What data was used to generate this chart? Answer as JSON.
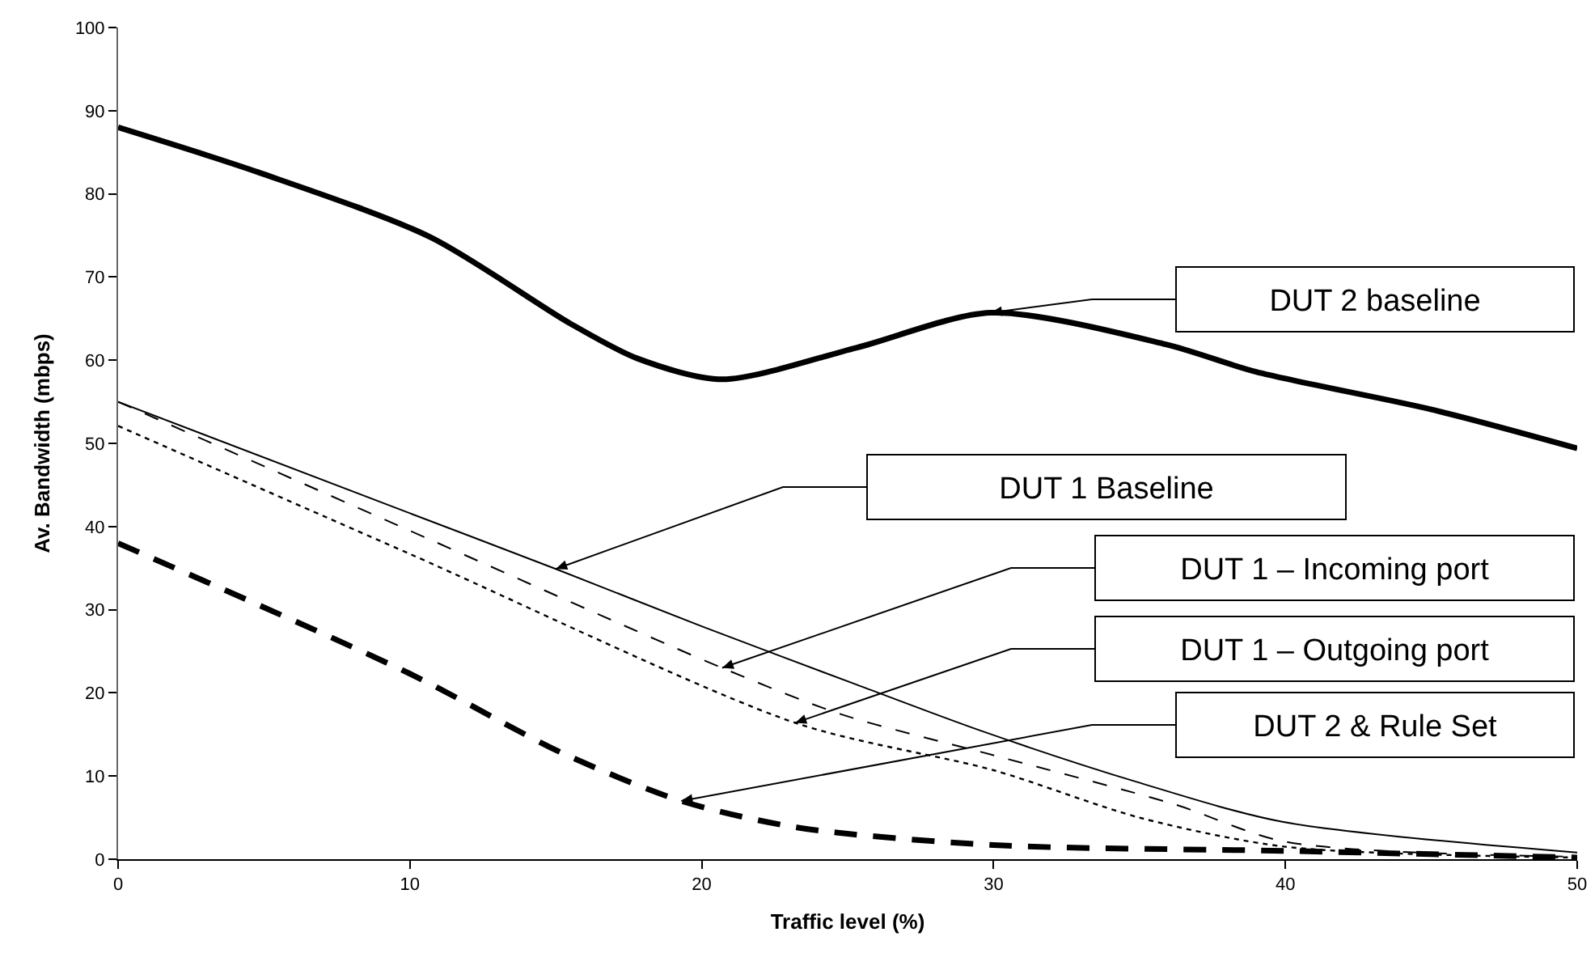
{
  "chart_data": {
    "type": "line",
    "xlabel": "Traffic level (%)",
    "ylabel": "Av. Bandwidth (mbps)",
    "xlim": [
      0,
      50
    ],
    "xticks": [
      0,
      10,
      20,
      30,
      40,
      50
    ],
    "ylim": [
      0,
      100
    ],
    "yticks": [
      0,
      10,
      20,
      30,
      40,
      50,
      60,
      70,
      80,
      90,
      100
    ],
    "grid": false,
    "marker": "none",
    "series": [
      {
        "color": "#000000",
        "line_style": "solid",
        "x": [
          0,
          4.8,
          10.7,
          15.5,
          17.8,
          20.7,
          25.3,
          29.9,
          35.9,
          39,
          45.1,
          50
        ],
        "values": [
          88,
          82.6,
          74.8,
          64.4,
          60.2,
          57.7,
          61.5,
          65.7,
          61.9,
          58.6,
          54,
          49.4
        ]
      },
      {
        "color": "#000000",
        "line_style": "solid",
        "x": [
          0,
          10,
          15,
          20,
          25.3,
          29.6,
          34.9,
          39.9,
          50
        ],
        "values": [
          55,
          41.6,
          34.9,
          28,
          21,
          15.4,
          9.3,
          4.5,
          0.8
        ]
      },
      {
        "color": "#000000",
        "line_style": "dashed",
        "x": [
          0,
          10,
          20.7,
          24.8,
          30,
          36.2,
          40,
          50
        ],
        "values": [
          55,
          39.5,
          23,
          17.4,
          12.5,
          6.6,
          2.1,
          0.3
        ]
      },
      {
        "color": "#000000",
        "line_style": "dotted",
        "x": [
          0,
          10,
          23.2,
          30,
          35,
          40,
          50
        ],
        "values": [
          52.1,
          36.7,
          16.4,
          10.7,
          5,
          1.5,
          0.2
        ]
      },
      {
        "color": "#000000",
        "line_style": "dashed",
        "x": [
          0,
          10,
          15.2,
          19.3,
          23.3,
          30,
          40,
          50
        ],
        "values": [
          38,
          22.3,
          12.8,
          7,
          3.8,
          1.7,
          1,
          0.2
        ]
      }
    ],
    "annotations": [
      {
        "text": "DUT 2 baseline",
        "x": 29.9,
        "y": 65.7
      },
      {
        "text": "DUT 1 Baseline",
        "x": 15,
        "y": 34.9
      },
      {
        "text": "DUT 1 – Incoming port",
        "x": 20.7,
        "y": 23
      },
      {
        "text": "DUT 1 – Outgoing port",
        "x": 23.2,
        "y": 16.4
      },
      {
        "text": "DUT 2 & Rule Set",
        "x": 19.3,
        "y": 7
      }
    ]
  }
}
